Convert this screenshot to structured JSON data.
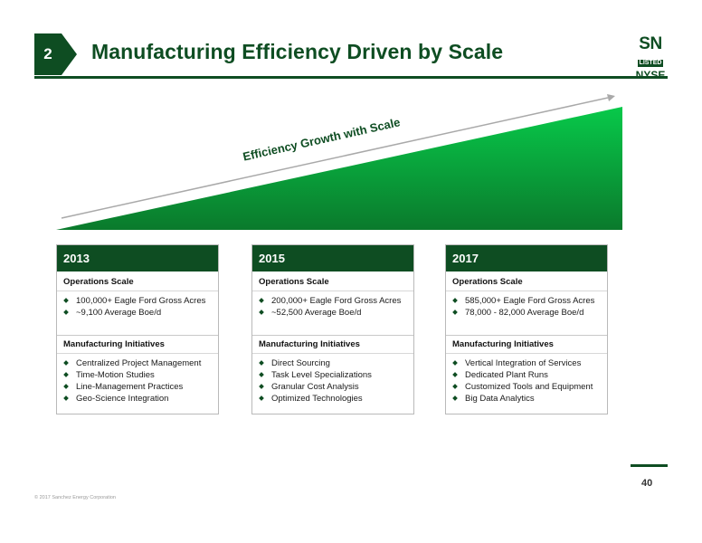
{
  "header": {
    "slide_number": "2",
    "title": "Manufacturing Efficiency Driven by Scale",
    "logo": {
      "line1": "SN",
      "line2": "LISTED",
      "line3": "NYSE"
    }
  },
  "graphic": {
    "arrow_label": "Efficiency Growth with Scale",
    "colors": {
      "fill_top": "#08c94a",
      "fill_bottom": "#0a7a2c",
      "arrow": "#a9a9a9"
    }
  },
  "columns": [
    {
      "year": "2013",
      "ops_heading": "Operations Scale",
      "ops": [
        "100,000+ Eagle Ford Gross Acres",
        "~9,100 Average Boe/d"
      ],
      "mi_heading": "Manufacturing Initiatives",
      "initiatives": [
        "Centralized Project Management",
        "Time-Motion Studies",
        "Line-Management Practices",
        "Geo-Science Integration"
      ]
    },
    {
      "year": "2015",
      "ops_heading": "Operations Scale",
      "ops": [
        "200,000+ Eagle Ford Gross Acres",
        "~52,500 Average Boe/d"
      ],
      "mi_heading": "Manufacturing Initiatives",
      "initiatives": [
        "Direct Sourcing",
        "Task Level Specializations",
        "Granular Cost Analysis",
        "Optimized Technologies"
      ]
    },
    {
      "year": "2017",
      "ops_heading": "Operations Scale",
      "ops": [
        "585,000+ Eagle Ford Gross Acres",
        "78,000 - 82,000 Average Boe/d"
      ],
      "mi_heading": "Manufacturing Initiatives",
      "initiatives": [
        "Vertical Integration of Services",
        "Dedicated Plant Runs",
        "Customized Tools and Equipment",
        "Big Data Analytics"
      ]
    }
  ],
  "footer": {
    "page_number": "40",
    "copyright": "© 2017 Sanchez Energy Corporation"
  },
  "theme": {
    "brand_green": "#0e4d22"
  }
}
